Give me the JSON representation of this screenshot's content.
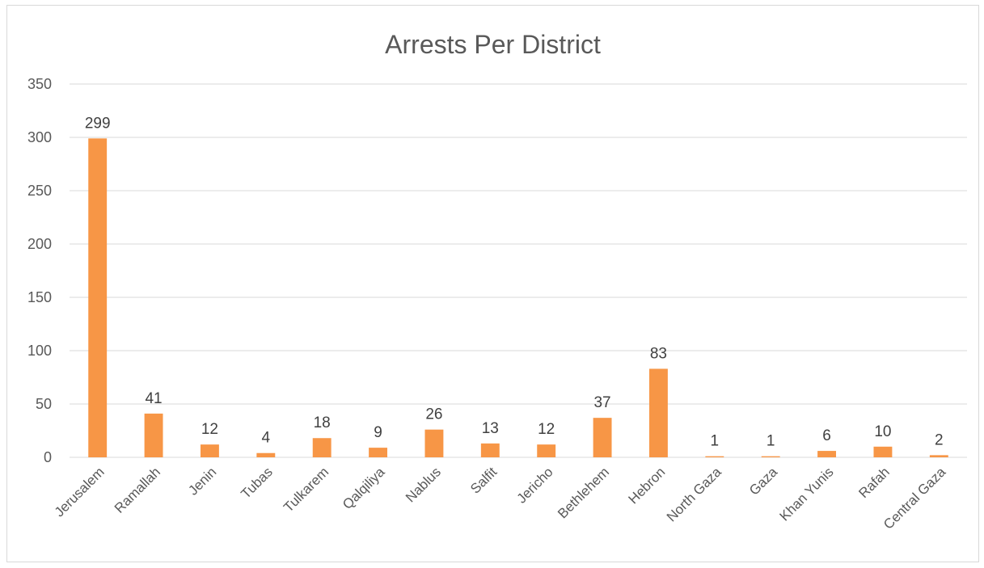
{
  "chart_data": {
    "type": "bar",
    "title": "Arrests Per District",
    "xlabel": "",
    "ylabel": "",
    "categories": [
      "Jerusalem",
      "Ramallah",
      "Jenin",
      "Tubas",
      "Tulkarem",
      "Qalqiliya",
      "Nablus",
      "Salfit",
      "Jericho",
      "Bethlehem",
      "Hebron",
      "North Gaza",
      "Gaza",
      "Khan Yunis",
      "Rafah",
      "Central Gaza"
    ],
    "values": [
      299,
      41,
      12,
      4,
      18,
      9,
      26,
      13,
      12,
      37,
      83,
      1,
      1,
      6,
      10,
      2
    ],
    "ylim": [
      0,
      350
    ],
    "yticks": [
      0,
      50,
      100,
      150,
      200,
      250,
      300,
      350
    ],
    "grid": true,
    "legend": "none",
    "data_labels": true,
    "bar_color": "#f79646"
  }
}
